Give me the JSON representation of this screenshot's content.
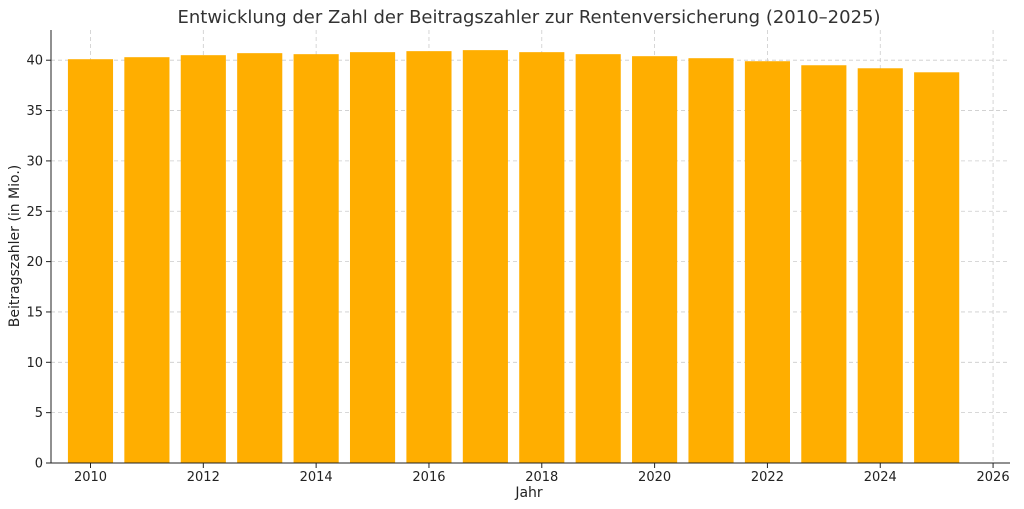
{
  "chart_data": {
    "type": "bar",
    "title": "Entwicklung der Zahl der Beitragszahler zur Rentenversicherung (2010–2025)",
    "xlabel": "Jahr",
    "ylabel": "Beitragszahler (in Mio.)",
    "x": [
      2010,
      2011,
      2012,
      2013,
      2014,
      2015,
      2016,
      2017,
      2018,
      2019,
      2020,
      2021,
      2022,
      2023,
      2024,
      2025
    ],
    "values": [
      40.1,
      40.3,
      40.5,
      40.7,
      40.6,
      40.8,
      40.9,
      41.0,
      40.8,
      40.6,
      40.4,
      40.2,
      39.9,
      39.5,
      39.2,
      38.8
    ],
    "xlim": [
      2009.3,
      2026.3
    ],
    "ylim": [
      0,
      43
    ],
    "xticks": [
      "2010",
      "2012",
      "2014",
      "2016",
      "2018",
      "2020",
      "2022",
      "2024",
      "2026"
    ],
    "yticks": [
      "0",
      "5",
      "10",
      "15",
      "20",
      "25",
      "30",
      "35",
      "40"
    ],
    "grid": true,
    "bar_color": "#FFAE00"
  }
}
